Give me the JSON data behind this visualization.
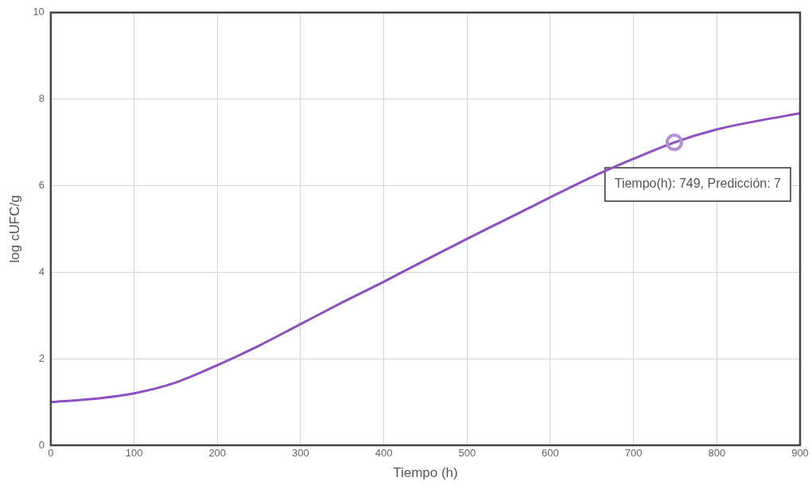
{
  "chart_data": {
    "type": "line",
    "xlabel": "Tiempo (h)",
    "ylabel": "log cUFC/g",
    "x": [
      0,
      50,
      100,
      150,
      200,
      250,
      300,
      350,
      400,
      450,
      500,
      550,
      600,
      650,
      700,
      749,
      800,
      850,
      900
    ],
    "series": [
      {
        "color": "#8e4fc0",
        "values": [
          1.0,
          1.07,
          1.2,
          1.45,
          1.85,
          2.3,
          2.8,
          3.3,
          3.78,
          4.28,
          4.77,
          5.25,
          5.73,
          6.2,
          6.62,
          7.0,
          7.3,
          7.5,
          7.67
        ]
      }
    ],
    "xlim": [
      0,
      900
    ],
    "xticks": [
      0,
      100,
      200,
      300,
      400,
      500,
      600,
      700,
      800,
      900
    ],
    "ylim": [
      0,
      10
    ],
    "yticks": [
      0,
      2,
      4,
      6,
      8,
      10
    ],
    "grid": true,
    "legend": false,
    "marker": "none",
    "line_style": "solid",
    "annotations": [
      {
        "text": "Tiempo(h): 749, Predicción: 7",
        "x": 749,
        "y": 7
      }
    ]
  }
}
